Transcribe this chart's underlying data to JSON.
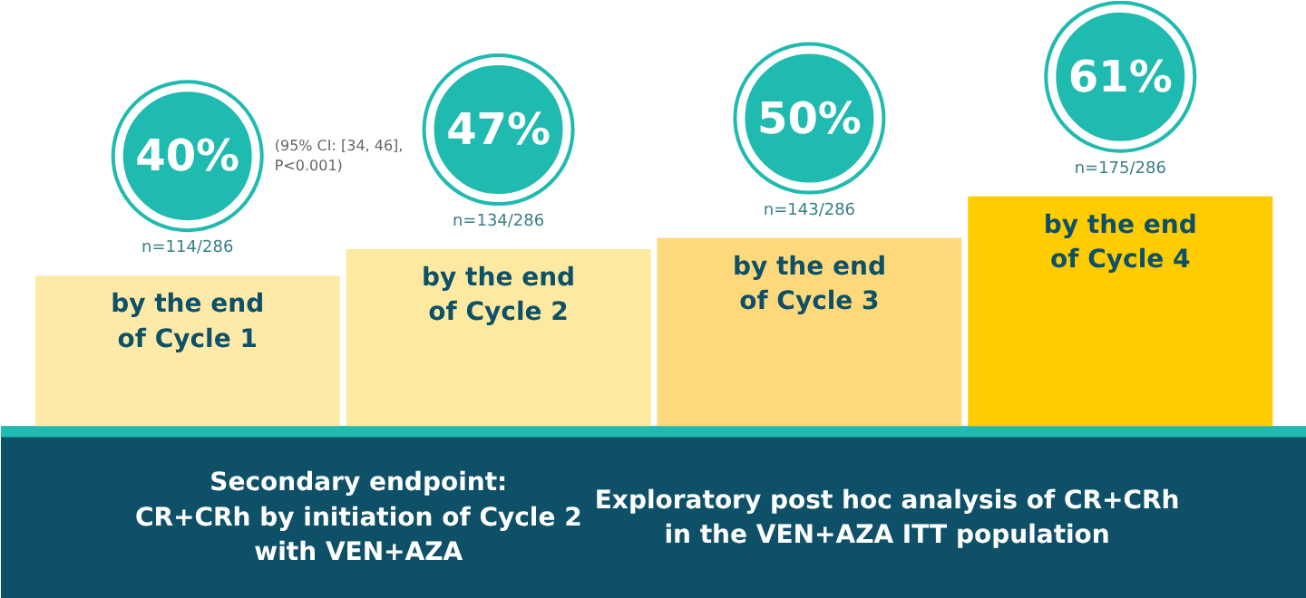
{
  "chart_data": {
    "type": "bar",
    "categories": [
      "by the end\nof Cycle 1",
      "by the end\nof Cycle 2",
      "by the end\nof Cycle 3",
      "by the end\nof Cycle 4"
    ],
    "values": [
      40,
      47,
      50,
      61
    ],
    "value_labels": [
      "40%",
      "47%",
      "50%",
      "61%"
    ],
    "colors": [
      "#fdeaa8",
      "#fdeaa0",
      "#fdd97c",
      "#ffcc00"
    ],
    "grid": false,
    "annotations": [
      "n=114/286",
      "(95% CI: [34, 46],\nP<0.001)",
      "n=134/286",
      "n=143/286",
      "n=175/286",
      "Secondary endpoint:\nCR+CRh by initiation of Cycle 2\nwith VEN+AZA",
      "Exploratory post hoc analysis of CR+CRh\nin the VEN+AZA ITT population"
    ]
  }
}
